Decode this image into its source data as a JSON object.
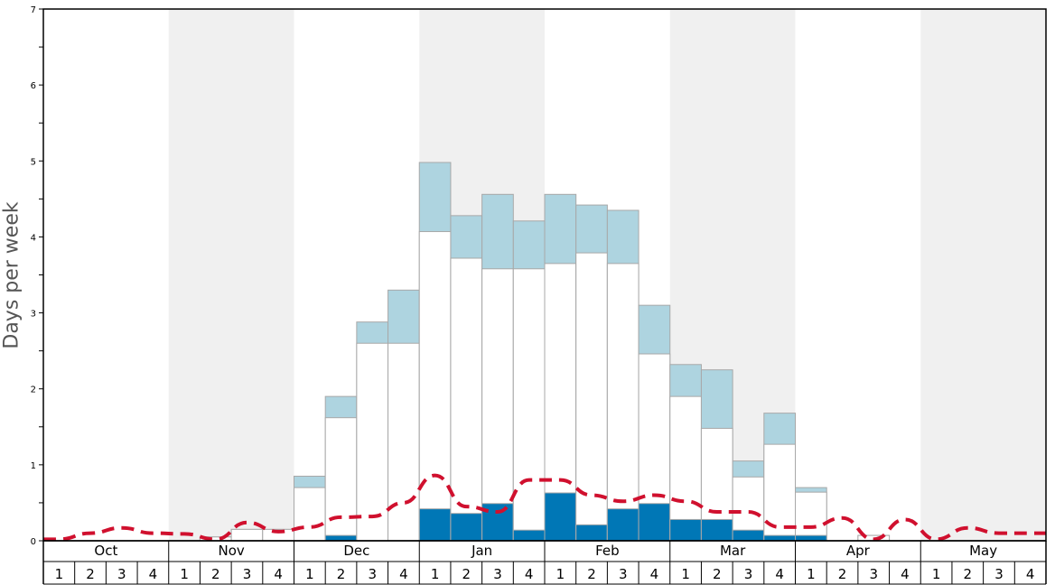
{
  "chart_data": {
    "type": "bar",
    "ylabel": "Days per week",
    "ylim": [
      0,
      7
    ],
    "yticks": [
      0,
      1,
      2,
      3,
      4,
      5,
      6,
      7
    ],
    "months": [
      "Oct",
      "Nov",
      "Dec",
      "Jan",
      "Feb",
      "Mar",
      "Apr",
      "May"
    ],
    "weeks": [
      "1",
      "2",
      "3",
      "4"
    ],
    "colors": {
      "total_fill": "#aed4e0",
      "middle_fill": "#ffffff",
      "bottom_fill": "#0077b6",
      "bar_stroke": "#a8a8a8",
      "dashed_line": "#d0102e",
      "band_fill": "#f0f0f0"
    },
    "series": [
      {
        "values": [
          0,
          0,
          0,
          0,
          0,
          0.05,
          0.15,
          0.15,
          0.85,
          1.9,
          2.88,
          3.3,
          4.98,
          4.28,
          4.56,
          4.21,
          4.56,
          4.42,
          4.35,
          3.1,
          2.32,
          2.25,
          1.05,
          1.68,
          0.7,
          0,
          0.07,
          0,
          0,
          0,
          0,
          0
        ]
      },
      {
        "values": [
          0,
          0,
          0,
          0,
          0,
          0.05,
          0.15,
          0.15,
          0.7,
          1.62,
          2.6,
          2.6,
          4.07,
          3.72,
          3.58,
          3.58,
          3.65,
          3.79,
          3.65,
          2.46,
          1.9,
          1.48,
          0.84,
          1.27,
          0.64,
          0,
          0.07,
          0,
          0,
          0,
          0,
          0
        ]
      },
      {
        "values": [
          0,
          0,
          0,
          0,
          0,
          0,
          0,
          0,
          0,
          0.07,
          0,
          0,
          0.42,
          0.36,
          0.49,
          0.14,
          0.63,
          0.21,
          0.42,
          0.49,
          0.28,
          0.28,
          0.14,
          0.07,
          0.07,
          0,
          0,
          0,
          0,
          0,
          0,
          0
        ]
      },
      {
        "values": [
          0.02,
          0.1,
          0.17,
          0.1,
          0.09,
          0.02,
          0.24,
          0.12,
          0.18,
          0.31,
          0.32,
          0.5,
          0.86,
          0.45,
          0.38,
          0.8,
          0.8,
          0.6,
          0.52,
          0.6,
          0.52,
          0.38,
          0.38,
          0.18,
          0.18,
          0.3,
          0.02,
          0.28,
          0.02,
          0.17,
          0.1,
          0.1
        ]
      }
    ]
  }
}
